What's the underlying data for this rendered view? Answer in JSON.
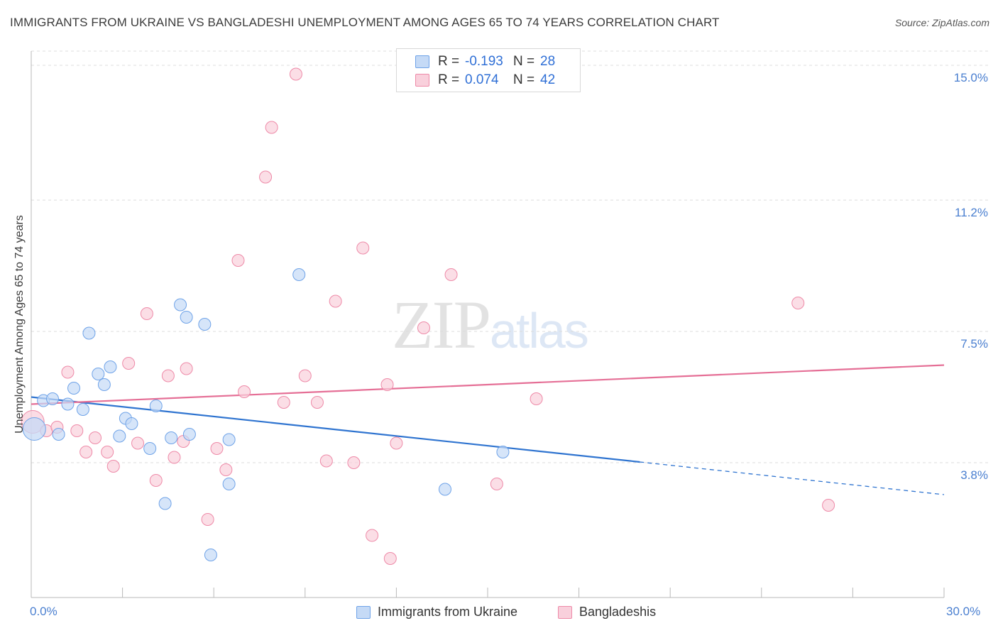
{
  "header": {
    "title": "IMMIGRANTS FROM UKRAINE VS BANGLADESHI UNEMPLOYMENT AMONG AGES 65 TO 74 YEARS CORRELATION CHART",
    "source": "Source: ZipAtlas.com"
  },
  "watermark": {
    "zip": "ZIP",
    "atlas": "atlas"
  },
  "legend": {
    "rows": [
      {
        "r_label": "R =",
        "r_value": "-0.193",
        "n_label": "N =",
        "n_value": "28"
      },
      {
        "r_label": "R =",
        "r_value": "0.074",
        "n_label": "N =",
        "n_value": "42"
      }
    ]
  },
  "bottom_legend": {
    "series1": "Immigrants from Ukraine",
    "series2": "Bangladeshis"
  },
  "chart_data": {
    "type": "scatter",
    "title": "IMMIGRANTS FROM UKRAINE VS BANGLADESHI UNEMPLOYMENT AMONG AGES 65 TO 74 YEARS CORRELATION CHART",
    "xlabel": "",
    "ylabel": "Unemployment Among Ages 65 to 74 years",
    "xlim": [
      0,
      30
    ],
    "ylim": [
      0,
      15.4
    ],
    "x_tick_labels": [
      "0.0%",
      "30.0%"
    ],
    "y_ticks": [
      3.8,
      7.5,
      11.2,
      15.0
    ],
    "y_tick_labels": [
      "3.8%",
      "7.5%",
      "11.2%",
      "15.0%"
    ],
    "grid": true,
    "legend_position": "top-center",
    "colors": {
      "ukraine": "#6fa3e8",
      "ukraine_fill": "#c5daf6",
      "bangladeshi": "#ee8aa8",
      "bangladeshi_fill": "#f9d0dc",
      "ukraine_line": "#2f74d0",
      "bangladeshi_line": "#e56f96"
    },
    "series": [
      {
        "name": "Immigrants from Ukraine",
        "r": -0.193,
        "n": 28,
        "trend": {
          "x_start": 0,
          "y_start": 5.65,
          "x_solid_end": 20,
          "y_solid_end": 3.82,
          "x_end": 30,
          "y_end": 2.9
        },
        "points": [
          {
            "x": 0.1,
            "y": 4.75,
            "big": true
          },
          {
            "x": 0.4,
            "y": 5.55
          },
          {
            "x": 0.7,
            "y": 5.6
          },
          {
            "x": 0.9,
            "y": 4.6
          },
          {
            "x": 1.2,
            "y": 5.45
          },
          {
            "x": 1.4,
            "y": 5.9
          },
          {
            "x": 1.7,
            "y": 5.3
          },
          {
            "x": 1.9,
            "y": 7.45
          },
          {
            "x": 2.2,
            "y": 6.3
          },
          {
            "x": 2.4,
            "y": 6.0
          },
          {
            "x": 2.6,
            "y": 6.5
          },
          {
            "x": 2.9,
            "y": 4.55
          },
          {
            "x": 3.1,
            "y": 5.05
          },
          {
            "x": 3.3,
            "y": 4.9
          },
          {
            "x": 3.9,
            "y": 4.2
          },
          {
            "x": 4.1,
            "y": 5.4
          },
          {
            "x": 4.4,
            "y": 2.65
          },
          {
            "x": 4.6,
            "y": 4.5
          },
          {
            "x": 4.9,
            "y": 8.25
          },
          {
            "x": 5.1,
            "y": 7.9
          },
          {
            "x": 5.2,
            "y": 4.6
          },
          {
            "x": 5.7,
            "y": 7.7
          },
          {
            "x": 5.9,
            "y": 1.2
          },
          {
            "x": 6.5,
            "y": 4.45
          },
          {
            "x": 6.5,
            "y": 3.2
          },
          {
            "x": 8.8,
            "y": 9.1
          },
          {
            "x": 13.6,
            "y": 3.05
          },
          {
            "x": 15.5,
            "y": 4.1
          }
        ]
      },
      {
        "name": "Bangladeshis",
        "r": 0.074,
        "n": 42,
        "trend": {
          "x_start": 0,
          "y_start": 5.45,
          "x_end": 30,
          "y_end": 6.55
        },
        "points": [
          {
            "x": 0.05,
            "y": 4.95,
            "big": true
          },
          {
            "x": 0.5,
            "y": 4.7
          },
          {
            "x": 0.85,
            "y": 4.8
          },
          {
            "x": 1.2,
            "y": 6.35
          },
          {
            "x": 1.5,
            "y": 4.7
          },
          {
            "x": 1.8,
            "y": 4.1
          },
          {
            "x": 2.1,
            "y": 4.5
          },
          {
            "x": 2.5,
            "y": 4.1
          },
          {
            "x": 2.7,
            "y": 3.7
          },
          {
            "x": 3.2,
            "y": 6.6
          },
          {
            "x": 3.5,
            "y": 4.35
          },
          {
            "x": 3.8,
            "y": 8.0
          },
          {
            "x": 4.1,
            "y": 3.3
          },
          {
            "x": 4.5,
            "y": 6.25
          },
          {
            "x": 4.7,
            "y": 3.95
          },
          {
            "x": 5.0,
            "y": 4.4
          },
          {
            "x": 5.1,
            "y": 6.45
          },
          {
            "x": 5.8,
            "y": 2.2
          },
          {
            "x": 6.1,
            "y": 4.2
          },
          {
            "x": 6.4,
            "y": 3.6
          },
          {
            "x": 6.8,
            "y": 9.5
          },
          {
            "x": 7.0,
            "y": 5.8
          },
          {
            "x": 7.7,
            "y": 11.85
          },
          {
            "x": 7.9,
            "y": 13.25
          },
          {
            "x": 8.3,
            "y": 5.5
          },
          {
            "x": 8.7,
            "y": 14.75
          },
          {
            "x": 9.0,
            "y": 6.25
          },
          {
            "x": 9.4,
            "y": 5.5
          },
          {
            "x": 9.7,
            "y": 3.85
          },
          {
            "x": 10.0,
            "y": 8.35
          },
          {
            "x": 10.6,
            "y": 3.8
          },
          {
            "x": 10.9,
            "y": 9.85
          },
          {
            "x": 11.2,
            "y": 1.75
          },
          {
            "x": 11.7,
            "y": 6.0
          },
          {
            "x": 11.8,
            "y": 1.1
          },
          {
            "x": 12.0,
            "y": 4.35
          },
          {
            "x": 12.9,
            "y": 7.6
          },
          {
            "x": 13.8,
            "y": 9.1
          },
          {
            "x": 15.3,
            "y": 3.2
          },
          {
            "x": 16.6,
            "y": 5.6
          },
          {
            "x": 25.2,
            "y": 8.3
          },
          {
            "x": 26.2,
            "y": 2.6
          }
        ]
      }
    ]
  }
}
